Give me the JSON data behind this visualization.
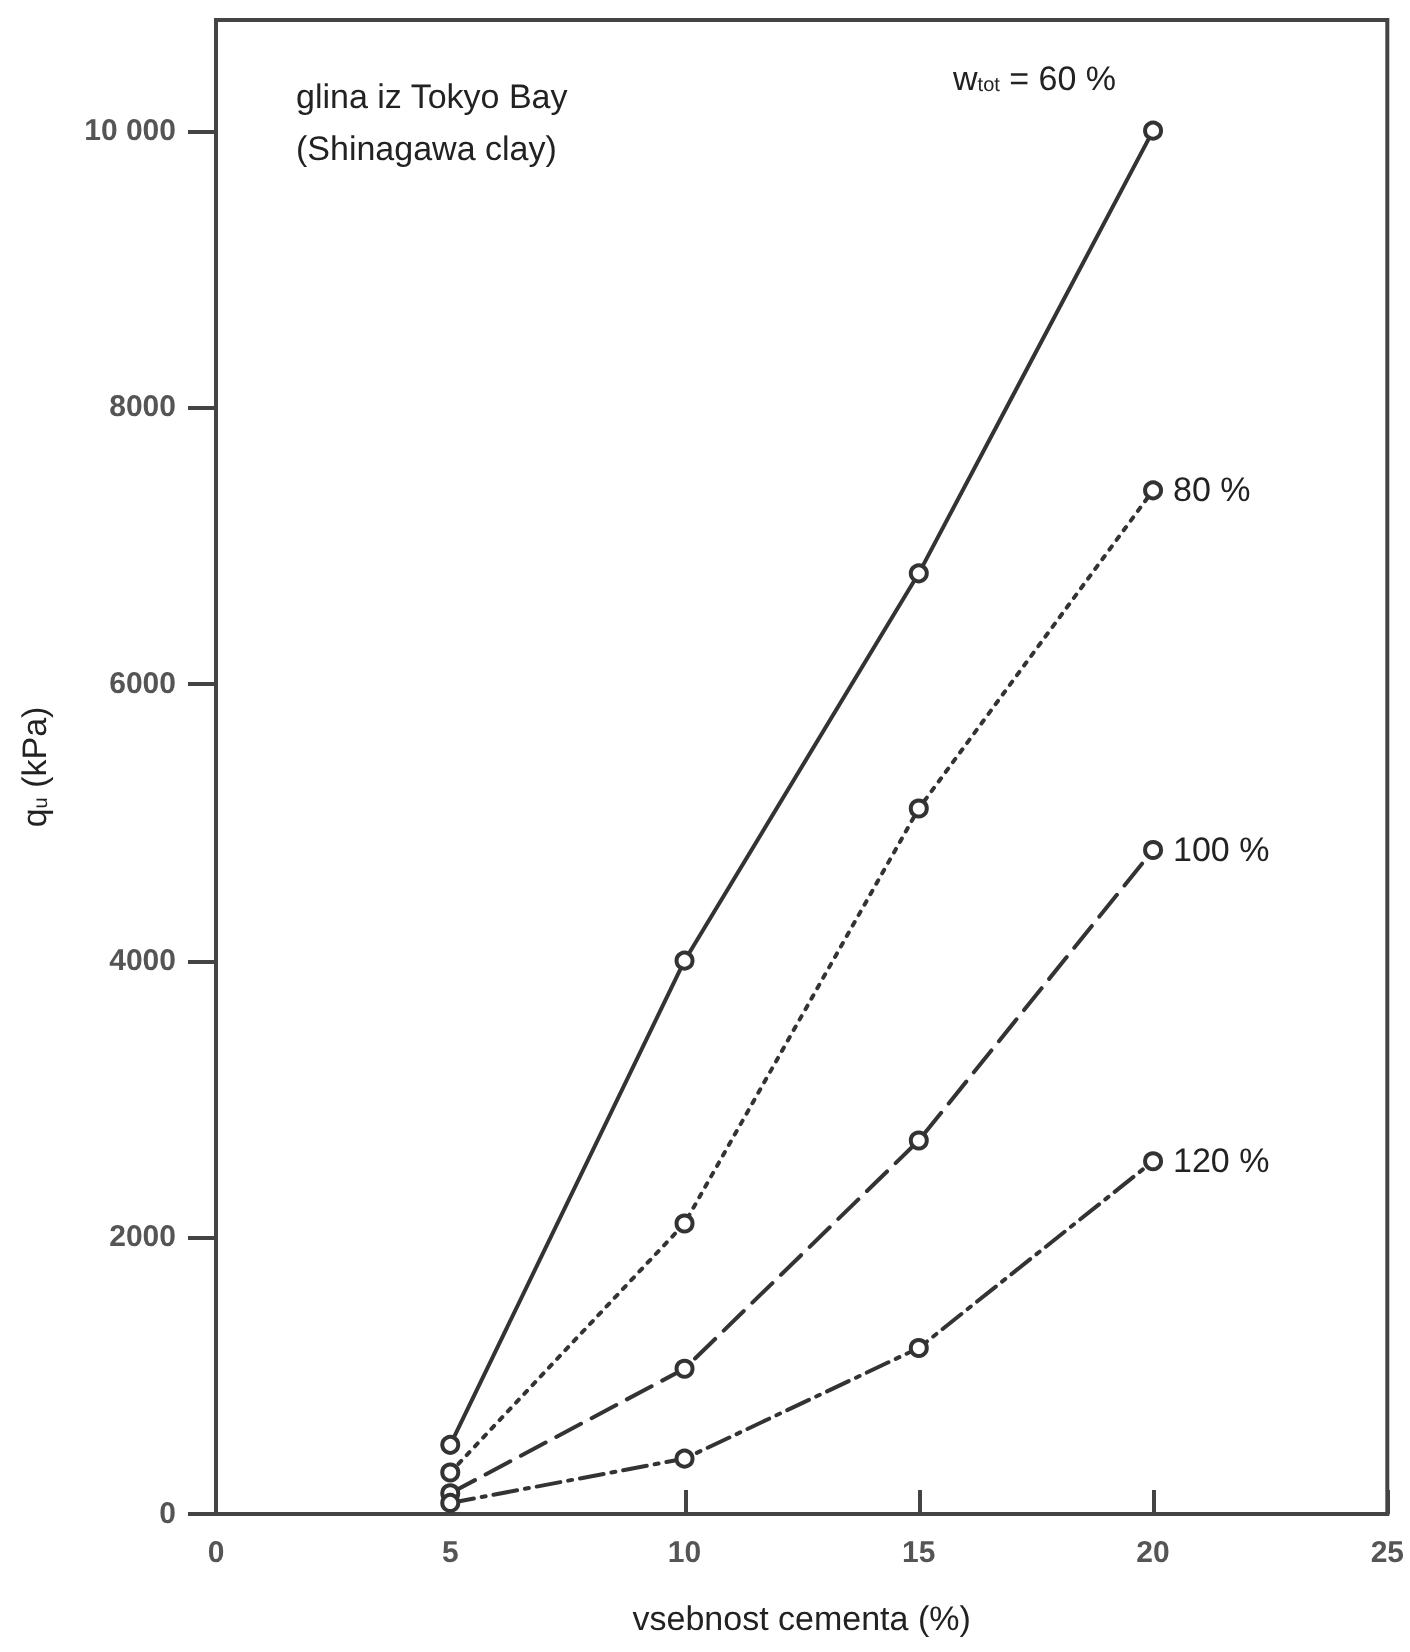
{
  "chart_data": {
    "type": "line",
    "xlabel": "vsebnost cementa (%)",
    "ylabel": "q$_{u}$ (kPa)",
    "annotations": [
      "glina iz Tokyo Bay",
      "(Shinagawa clay)"
    ],
    "x": [
      5,
      10,
      15,
      20
    ],
    "series": [
      {
        "name": "w$_{tot}$ = 60 %",
        "color": "#333333",
        "line_style": "solid",
        "values": [
          500,
          4000,
          6800,
          10000
        ]
      },
      {
        "name": "80 %",
        "color": "#333333",
        "line_style": "dotted",
        "values": [
          300,
          2100,
          5100,
          7400
        ]
      },
      {
        "name": "100 %",
        "color": "#333333",
        "line_style": "dashed",
        "values": [
          150,
          1050,
          2700,
          4800
        ]
      },
      {
        "name": "120 %",
        "color": "#333333",
        "line_style": "dashdot",
        "values": [
          80,
          400,
          1200,
          2550
        ]
      }
    ],
    "xlim": [
      0,
      25
    ],
    "xticks": [
      0,
      5,
      10,
      15,
      20,
      25
    ],
    "ylim": [
      0,
      10800
    ],
    "yticks": [
      0,
      2000,
      4000,
      6000,
      8000,
      {
        "value": 10000,
        "label": "10 000"
      }
    ],
    "marker": "circle",
    "grid": false,
    "legend": false
  }
}
